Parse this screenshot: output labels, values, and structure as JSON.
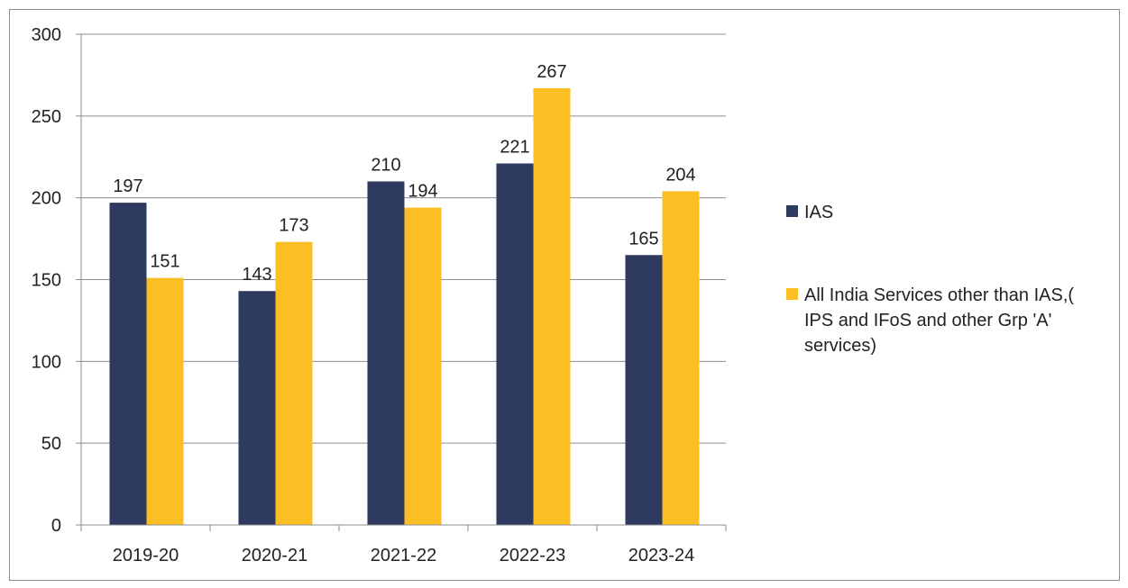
{
  "chart_data": {
    "type": "bar",
    "title": "",
    "xlabel": "",
    "ylabel": "",
    "categories": [
      "2019-20",
      "2020-21",
      "2021-22",
      "2022-23",
      "2023-24"
    ],
    "series": [
      {
        "name": "IAS",
        "values": [
          197,
          143,
          210,
          221,
          165
        ],
        "color": "#2e3a5f"
      },
      {
        "name": "All India Services other than IAS,( IPS and IFoS and other Grp 'A' services)",
        "values": [
          151,
          173,
          194,
          267,
          204
        ],
        "color": "#fbbf24"
      }
    ],
    "ylim": [
      0,
      300
    ],
    "yticks": [
      0,
      50,
      100,
      150,
      200,
      250,
      300
    ],
    "grid": true,
    "legend_position": "right",
    "data_labels": true
  }
}
